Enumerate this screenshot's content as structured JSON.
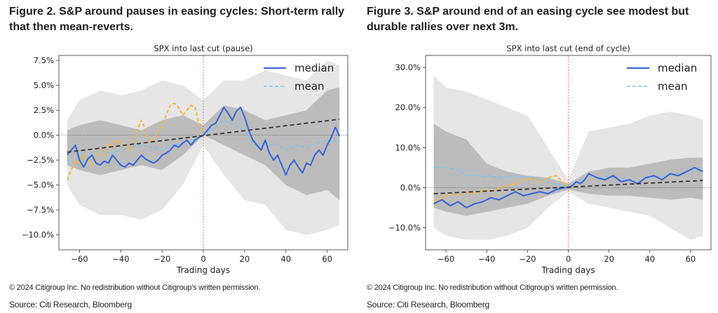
{
  "figures": [
    {
      "heading": "Figure 2. S&P around pauses in easing cycles: Short-term rally that then mean-reverts.",
      "copyright": "© 2024 Citigroup Inc. No redistribution without Citigroup's written permission.",
      "source": "Source: Citi Research, Bloomberg"
    },
    {
      "heading": "Figure 3. S&P around end of an easing cycle see modest but durable rallies over next 3m.",
      "copyright": "© 2024 Citigroup Inc. No redistribution without Citigroup's written permission.",
      "source": "Source: Citi Research, Bloomberg"
    }
  ],
  "chart_data": [
    {
      "type": "line",
      "title": "SPX into last cut (pause)",
      "xlabel": "Trading days",
      "ylabel": "",
      "xlim": [
        -70,
        70
      ],
      "ylim": [
        -11.5,
        8.0
      ],
      "xticks": [
        -60,
        -40,
        -20,
        0,
        20,
        40,
        60
      ],
      "xtick_labels": [
        "−60",
        "−40",
        "−20",
        "0",
        "20",
        "40",
        "60"
      ],
      "yticks": [
        7.5,
        5.0,
        2.5,
        0.0,
        -2.5,
        -5.0,
        -7.5,
        -10.0
      ],
      "ytick_labels": [
        "7.5%",
        "5.0%",
        "2.5%",
        "0.0%",
        "−2.5%",
        "−5.0%",
        "−7.5%",
        "−10.0%"
      ],
      "legend": [
        "median",
        "mean"
      ],
      "legend_position": "top-right",
      "colors": {
        "median": "#3a63d8",
        "mean": "#7cc4f0",
        "partial": "#f2b93b",
        "trend": "#333333",
        "band_outer": "#e6e6e6",
        "band_inner": "#bcbcbc",
        "cut_line": "#e8706e"
      },
      "band_outer": {
        "x": [
          -66,
          -60,
          -50,
          -40,
          -30,
          -20,
          -10,
          0,
          10,
          20,
          30,
          40,
          50,
          60,
          66
        ],
        "upper": [
          1.5,
          3.5,
          4.5,
          4.0,
          4.5,
          5.5,
          5.0,
          3.5,
          5.5,
          5.5,
          6.5,
          6.0,
          5.5,
          7.5,
          7.0
        ],
        "lower": [
          -5.0,
          -7.0,
          -8.0,
          -8.0,
          -8.5,
          -7.5,
          -5.0,
          -1.0,
          -4.0,
          -6.5,
          -7.0,
          -9.5,
          -10.0,
          -9.5,
          -9.0
        ]
      },
      "band_inner": {
        "x": [
          -66,
          -60,
          -50,
          -40,
          -30,
          -20,
          -10,
          0,
          10,
          20,
          30,
          40,
          50,
          60,
          66
        ],
        "upper": [
          0.5,
          1.0,
          1.5,
          1.0,
          0.5,
          1.5,
          2.0,
          1.0,
          3.0,
          2.5,
          1.5,
          2.0,
          2.5,
          4.5,
          4.8
        ],
        "lower": [
          -3.0,
          -3.5,
          -4.0,
          -3.5,
          -3.0,
          -3.5,
          -2.0,
          0.0,
          -1.0,
          -2.0,
          -3.0,
          -5.0,
          -6.0,
          -5.5,
          -6.5
        ]
      },
      "series": [
        {
          "name": "median",
          "x": [
            -66,
            -64,
            -62,
            -60,
            -58,
            -56,
            -54,
            -52,
            -50,
            -48,
            -46,
            -44,
            -42,
            -40,
            -38,
            -36,
            -34,
            -32,
            -30,
            -28,
            -26,
            -24,
            -22,
            -20,
            -18,
            -16,
            -14,
            -12,
            -10,
            -8,
            -6,
            -4,
            -2,
            0,
            2,
            4,
            6,
            8,
            10,
            12,
            14,
            16,
            18,
            20,
            22,
            24,
            26,
            28,
            30,
            32,
            34,
            36,
            38,
            40,
            42,
            44,
            46,
            48,
            50,
            52,
            54,
            56,
            58,
            60,
            62,
            64,
            66
          ],
          "y": [
            -2.0,
            -1.5,
            -1.0,
            -2.5,
            -3.2,
            -2.4,
            -2.0,
            -2.8,
            -3.0,
            -2.6,
            -2.8,
            -2.0,
            -2.5,
            -3.0,
            -3.2,
            -2.8,
            -3.0,
            -2.5,
            -2.0,
            -2.4,
            -2.6,
            -2.8,
            -2.5,
            -2.0,
            -1.8,
            -1.5,
            -1.0,
            -1.2,
            -0.8,
            -0.5,
            -1.0,
            -0.5,
            -0.2,
            0.0,
            0.5,
            1.0,
            1.2,
            2.0,
            2.8,
            2.2,
            1.5,
            2.4,
            2.8,
            1.8,
            0.5,
            -0.5,
            -1.0,
            -1.5,
            -0.5,
            -1.8,
            -2.5,
            -2.0,
            -3.0,
            -4.0,
            -3.0,
            -2.5,
            -3.2,
            -3.8,
            -2.8,
            -3.0,
            -2.0,
            -1.5,
            -2.0,
            -1.0,
            -0.2,
            0.8,
            -0.1
          ]
        },
        {
          "name": "mean",
          "x": [
            -66,
            -60,
            -55,
            -50,
            -45,
            -40,
            -35,
            -30,
            -25,
            -20,
            -15,
            -10,
            -5,
            0,
            5,
            10,
            15,
            20,
            25,
            30,
            35,
            40,
            45,
            50,
            55,
            60,
            66
          ],
          "y": [
            -2.5,
            -3.0,
            -2.0,
            -1.5,
            -1.8,
            -1.5,
            -1.2,
            -1.0,
            -1.2,
            -1.5,
            -1.0,
            -0.8,
            -0.5,
            0.0,
            0.8,
            1.5,
            1.0,
            0.5,
            -1.0,
            -1.2,
            -0.8,
            -1.5,
            -1.0,
            -1.2,
            -0.8,
            -0.5,
            -0.6
          ]
        },
        {
          "name": "partial",
          "x": [
            -66,
            -64,
            -62,
            -60,
            -58,
            -56,
            -54,
            -52,
            -50,
            -48,
            -46,
            -44,
            -42,
            -40,
            -38,
            -36,
            -34,
            -32,
            -30,
            -28,
            -26,
            -24,
            -22,
            -20,
            -18,
            -16,
            -14,
            -12,
            -10,
            -8,
            -6,
            -4,
            -2,
            0
          ],
          "y": [
            -4.5,
            -3.5,
            -2.5,
            -3.0,
            -2.0,
            -2.5,
            -3.0,
            -2.0,
            -1.5,
            -2.0,
            -0.8,
            -1.0,
            -0.5,
            -0.8,
            -1.0,
            -1.5,
            -0.8,
            0.5,
            1.5,
            0.5,
            -0.8,
            -0.5,
            0.3,
            1.0,
            2.0,
            3.0,
            3.2,
            2.8,
            2.0,
            2.5,
            3.0,
            2.8,
            1.0,
            0.2
          ]
        },
        {
          "name": "trend",
          "x": [
            -66,
            66
          ],
          "y": [
            -1.7,
            1.6
          ]
        }
      ]
    },
    {
      "type": "line",
      "title": "SPX into last cut (end of cycle)",
      "xlabel": "Trading days",
      "ylabel": "",
      "xlim": [
        -70,
        70
      ],
      "ylim": [
        -15.5,
        33.0
      ],
      "xticks": [
        -60,
        -40,
        -20,
        0,
        20,
        40,
        60
      ],
      "xtick_labels": [
        "−60",
        "−40",
        "−20",
        "0",
        "20",
        "40",
        "60"
      ],
      "yticks": [
        30,
        20,
        10,
        0,
        -10
      ],
      "ytick_labels": [
        "30.0%",
        "20.0%",
        "10.0%",
        "0.0%",
        "−10.0%"
      ],
      "legend": [
        "median",
        "mean"
      ],
      "legend_position": "top-right",
      "colors": {
        "median": "#3a63d8",
        "mean": "#7cc4f0",
        "partial": "#f2b93b",
        "trend": "#333333",
        "band_outer": "#e6e6e6",
        "band_inner": "#bcbcbc",
        "cut_line": "#e8706e"
      },
      "band_outer": {
        "x": [
          -66,
          -60,
          -50,
          -40,
          -30,
          -20,
          -10,
          0,
          10,
          20,
          30,
          40,
          50,
          60,
          66
        ],
        "upper": [
          28.0,
          25.0,
          24.0,
          22.0,
          20.0,
          18.0,
          10.0,
          2.0,
          14.0,
          15.0,
          16.0,
          18.0,
          19.0,
          18.0,
          17.0
        ],
        "lower": [
          -10.0,
          -12.0,
          -13.0,
          -13.0,
          -12.0,
          -10.0,
          -5.0,
          -1.0,
          -4.0,
          -5.0,
          -6.0,
          -7.0,
          -10.0,
          -13.0,
          -12.0
        ]
      },
      "band_inner": {
        "x": [
          -66,
          -60,
          -50,
          -40,
          -30,
          -20,
          -10,
          0,
          10,
          20,
          30,
          40,
          50,
          60,
          66
        ],
        "upper": [
          16.0,
          14.0,
          12.0,
          6.0,
          4.0,
          3.0,
          2.5,
          1.0,
          4.0,
          5.0,
          5.0,
          6.0,
          7.0,
          7.5,
          7.5
        ],
        "lower": [
          -5.0,
          -6.0,
          -7.0,
          -6.0,
          -5.0,
          -4.0,
          -2.0,
          -0.5,
          -1.5,
          -2.0,
          -2.0,
          -2.5,
          -3.0,
          -2.5,
          -3.0
        ]
      },
      "series": [
        {
          "name": "median",
          "x": [
            -66,
            -62,
            -58,
            -54,
            -50,
            -46,
            -42,
            -38,
            -34,
            -30,
            -26,
            -22,
            -18,
            -14,
            -10,
            -6,
            -2,
            0,
            2,
            4,
            6,
            8,
            10,
            14,
            18,
            22,
            26,
            30,
            34,
            38,
            42,
            46,
            50,
            54,
            58,
            62,
            66
          ],
          "y": [
            -4.0,
            -3.0,
            -4.5,
            -3.5,
            -5.0,
            -4.0,
            -3.5,
            -2.5,
            -3.0,
            -2.0,
            -1.0,
            -2.0,
            -1.5,
            -1.0,
            -1.5,
            -0.5,
            0.0,
            0.0,
            0.5,
            1.5,
            1.0,
            2.0,
            3.5,
            2.5,
            2.0,
            3.0,
            1.5,
            2.0,
            1.0,
            2.5,
            3.0,
            2.0,
            3.5,
            3.0,
            4.0,
            5.0,
            4.0
          ]
        },
        {
          "name": "mean",
          "x": [
            -66,
            -62,
            -58,
            -54,
            -50,
            -46,
            -42,
            -38,
            -34,
            -30,
            -26,
            -22,
            -18,
            -14,
            -10,
            -6,
            -2,
            0,
            4,
            8,
            12,
            16,
            20,
            24,
            28,
            32,
            36,
            40,
            44,
            48,
            52,
            56,
            60,
            64,
            66
          ],
          "y": [
            5.0,
            5.2,
            4.8,
            4.5,
            3.0,
            3.2,
            2.8,
            3.0,
            2.5,
            2.8,
            3.0,
            2.5,
            2.8,
            2.0,
            1.5,
            1.0,
            0.5,
            0.2,
            1.5,
            2.5,
            3.0,
            2.5,
            3.0,
            2.0,
            2.5,
            1.5,
            2.0,
            2.5,
            2.8,
            3.0,
            3.5,
            3.8,
            4.5,
            5.0,
            4.5
          ]
        },
        {
          "name": "partial",
          "x": [
            -66,
            -62,
            -58,
            -54,
            -50,
            -46,
            -42,
            -38,
            -34,
            -30,
            -26,
            -22,
            -18,
            -14,
            -10,
            -6,
            -2,
            0
          ],
          "y": [
            -3.5,
            -2.5,
            -1.5,
            -2.0,
            -1.0,
            -1.5,
            -0.5,
            -1.0,
            0.0,
            0.5,
            1.0,
            2.0,
            2.5,
            1.5,
            2.5,
            3.0,
            1.0,
            0.2
          ]
        },
        {
          "name": "trend",
          "x": [
            -66,
            66
          ],
          "y": [
            -1.5,
            1.8
          ]
        }
      ]
    }
  ]
}
